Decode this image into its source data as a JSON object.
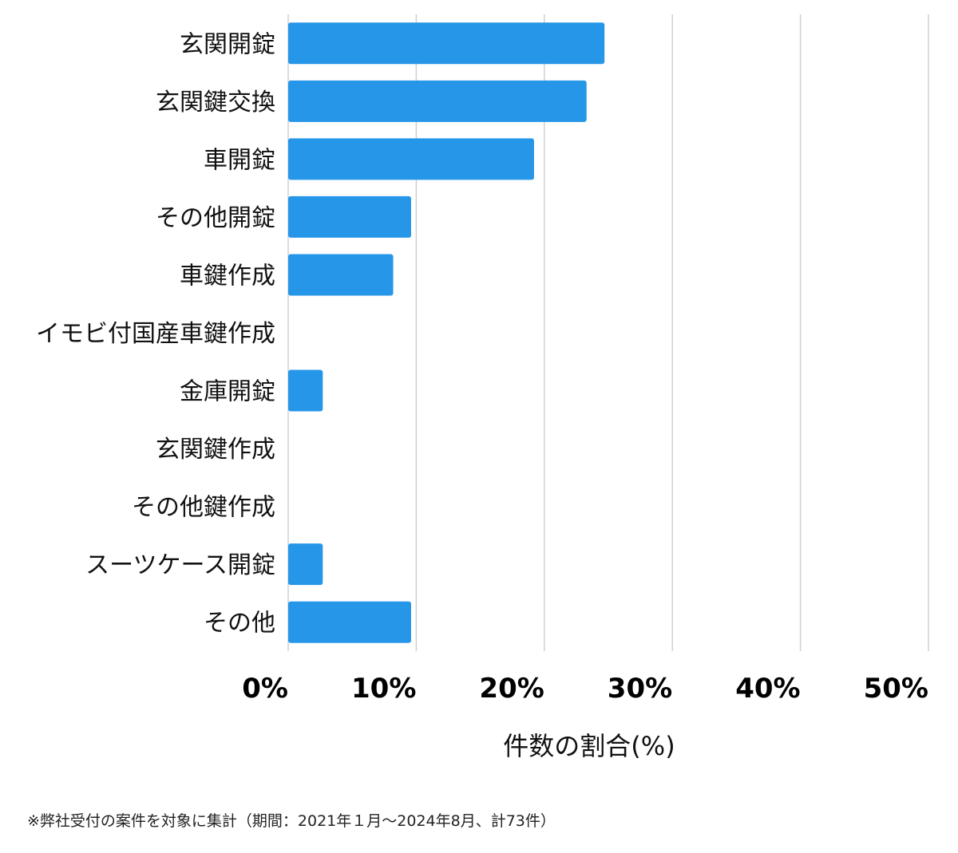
{
  "chart_data": {
    "type": "bar",
    "orientation": "horizontal",
    "categories": [
      "玄関開錠",
      "玄関鍵交換",
      "車開錠",
      "その他開錠",
      "車鍵作成",
      "イモビ付国産車鍵作成",
      "金庫開錠",
      "玄関鍵作成",
      "その他鍵作成",
      "スーツケース開錠",
      "その他"
    ],
    "values": [
      24.7,
      23.3,
      19.2,
      9.6,
      8.2,
      0,
      2.7,
      0,
      0,
      2.7,
      9.6
    ],
    "xlim": [
      0,
      50
    ],
    "xticks": [
      0,
      10,
      20,
      30,
      40,
      50
    ],
    "xtick_labels": [
      "0%",
      "10%",
      "20%",
      "30%",
      "40%",
      "50%"
    ],
    "xlabel": "件数の割合(%)",
    "ylabel": "",
    "title": "",
    "grid": "vertical",
    "bar_color": "#2696e8",
    "grid_color": "#d0d0d0"
  },
  "footnote": "※弊社受付の案件を対象に集計（期間：2021年１月〜2024年8月、計73件）"
}
